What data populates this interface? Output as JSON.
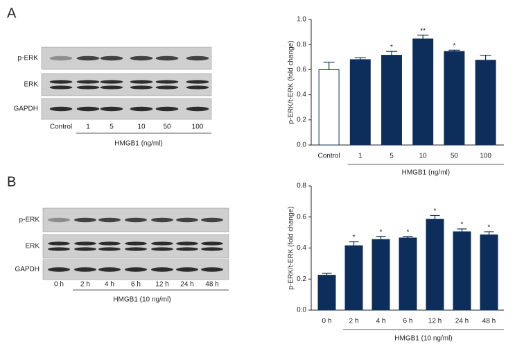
{
  "panels": [
    {
      "label": "A",
      "blot": {
        "rows": [
          "p-ERK",
          "ERK",
          "GAPDH"
        ],
        "lanes": [
          "Control",
          "1",
          "5",
          "10",
          "50",
          "100"
        ],
        "treatment": "HMGB1 (ng/ml)"
      }
    },
    {
      "label": "B",
      "blot": {
        "rows": [
          "p-ERK",
          "ERK",
          "GAPDH"
        ],
        "lanes": [
          "0 h",
          "2 h",
          "4 h",
          "6 h",
          "12 h",
          "24 h",
          "48 h"
        ],
        "treatment": "HMGB1 (10 ng/ml)"
      }
    }
  ],
  "chart_data": [
    {
      "type": "bar",
      "ylabel": "p-ERK/t-ERK (fold change)",
      "xlabel": "HMGB1 (ng/ml)",
      "categories": [
        "Control",
        "1",
        "5",
        "10",
        "50",
        "100"
      ],
      "values": [
        0.6,
        0.68,
        0.715,
        0.845,
        0.745,
        0.675
      ],
      "errors": [
        0.06,
        0.015,
        0.03,
        0.03,
        0.01,
        0.04
      ],
      "significance": [
        null,
        null,
        "*",
        "**",
        "*",
        null
      ],
      "colors": [
        "#ffffff",
        "#0d2d5a",
        "#0d2d5a",
        "#0d2d5a",
        "#0d2d5a",
        "#0d2d5a"
      ],
      "ylim": [
        0,
        1
      ],
      "yticks": [
        {
          "value": 0,
          "label": "0.0"
        },
        0.2,
        0.4,
        0.6,
        0.8,
        {
          "value": 1,
          "label": "1.0"
        }
      ]
    },
    {
      "type": "bar",
      "ylabel": "p-ERK/t-ERK (fold change)",
      "xlabel": "HMGB1 (10 ng/ml)",
      "categories": [
        "0 h",
        "2 h",
        "4 h",
        "6 h",
        "12 h",
        "24 h",
        "48 h"
      ],
      "values": [
        0.225,
        0.415,
        0.455,
        0.465,
        0.585,
        0.505,
        0.485
      ],
      "errors": [
        0.012,
        0.025,
        0.02,
        0.01,
        0.025,
        0.018,
        0.02
      ],
      "significance": [
        null,
        "*",
        "*",
        "*",
        "*",
        "*",
        "*"
      ],
      "colors": [
        "#0d2d5a",
        "#0d2d5a",
        "#0d2d5a",
        "#0d2d5a",
        "#0d2d5a",
        "#0d2d5a",
        "#0d2d5a"
      ],
      "ylim": [
        0,
        0.8
      ],
      "yticks": [
        {
          "value": 0,
          "label": "0.0"
        },
        0.2,
        0.4,
        0.6,
        0.8
      ]
    }
  ]
}
